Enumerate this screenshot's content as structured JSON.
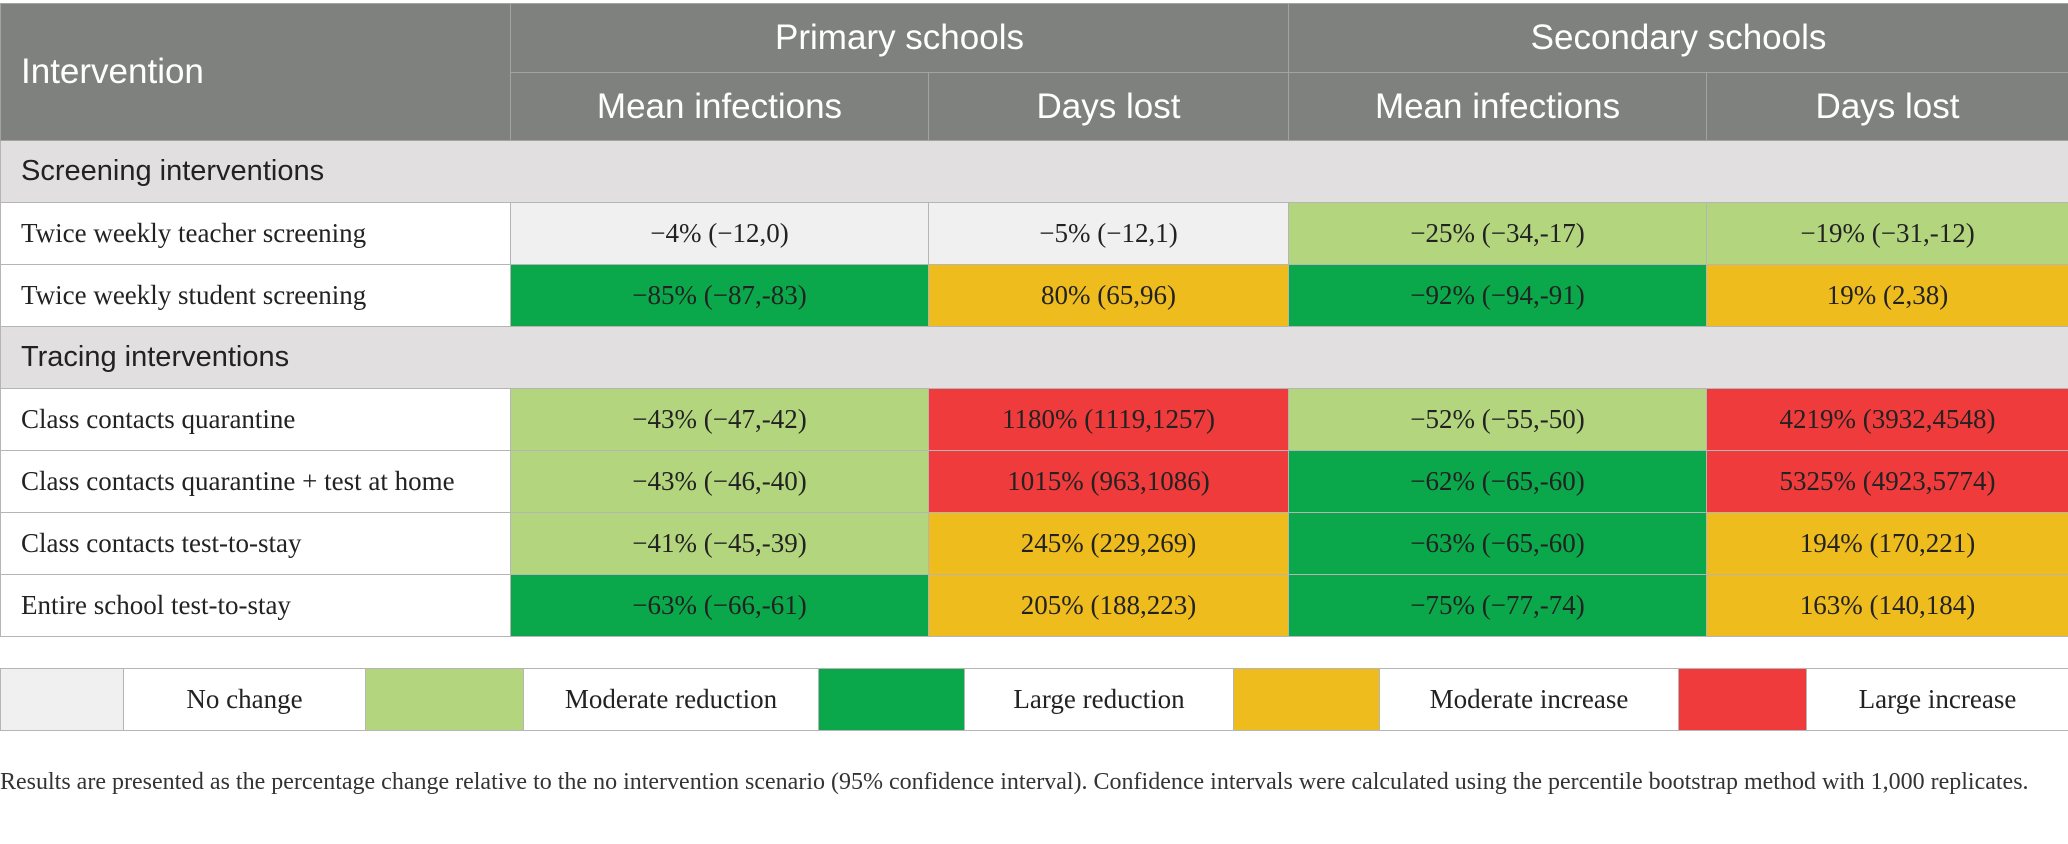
{
  "colors": {
    "header_bg": "#7f817f",
    "section_bg": "#e1dfe0",
    "no_change": "#f0f0f0",
    "moderate_reduction": "#b3d57e",
    "large_reduction": "#0aa84b",
    "moderate_increase": "#efbc1e",
    "large_increase": "#ef3b3b"
  },
  "header": {
    "intervention": "Intervention",
    "primary": "Primary schools",
    "secondary": "Secondary schools",
    "mean_infections": "Mean infections",
    "days_lost": "Days lost"
  },
  "sections": [
    {
      "title": "Screening interventions",
      "rows": [
        {
          "label": "Twice weekly teacher screening",
          "values": [
            "−4% (−12,0)",
            "−5% (−12,1)",
            "−25% (−34,-17)",
            "−19% (−31,-12)"
          ],
          "levels": [
            "none",
            "none",
            "modred",
            "modred"
          ]
        },
        {
          "label": "Twice weekly student screening",
          "values": [
            "−85% (−87,-83)",
            "80% (65,96)",
            "−92% (−94,-91)",
            "19% (2,38)"
          ],
          "levels": [
            "lgred",
            "modinc",
            "lgred",
            "modinc"
          ]
        }
      ]
    },
    {
      "title": "Tracing interventions",
      "rows": [
        {
          "label": "Class contacts quarantine",
          "values": [
            "−43% (−47,-42)",
            "1180% (1119,1257)",
            "−52% (−55,-50)",
            "4219% (3932,4548)"
          ],
          "levels": [
            "modred",
            "lginc",
            "modred",
            "lginc"
          ]
        },
        {
          "label": "Class contacts quarantine + test at home",
          "values": [
            "−43% (−46,-40)",
            "1015% (963,1086)",
            "−62% (−65,-60)",
            "5325% (4923,5774)"
          ],
          "levels": [
            "modred",
            "lginc",
            "lgred",
            "lginc"
          ]
        },
        {
          "label": "Class contacts test-to-stay",
          "values": [
            "−41% (−45,-39)",
            "245% (229,269)",
            "−63% (−65,-60)",
            "194% (170,221)"
          ],
          "levels": [
            "modred",
            "modinc",
            "lgred",
            "modinc"
          ]
        },
        {
          "label": "Entire school test-to-stay",
          "values": [
            "−63% (−66,-61)",
            "205% (188,223)",
            "−75% (−77,-74)",
            "163% (140,184)"
          ],
          "levels": [
            "lgred",
            "modinc",
            "lgred",
            "modinc"
          ]
        }
      ]
    }
  ],
  "legend": {
    "no_change": "No change",
    "moderate_reduction": "Moderate reduction",
    "large_reduction": "Large reduction",
    "moderate_increase": "Moderate increase",
    "large_increase": "Large increase"
  },
  "note": "Results are presented as the percentage change relative to the no intervention scenario (95% confidence interval). Confidence intervals were calculated using the percentile bootstrap method with 1,000 replicates."
}
